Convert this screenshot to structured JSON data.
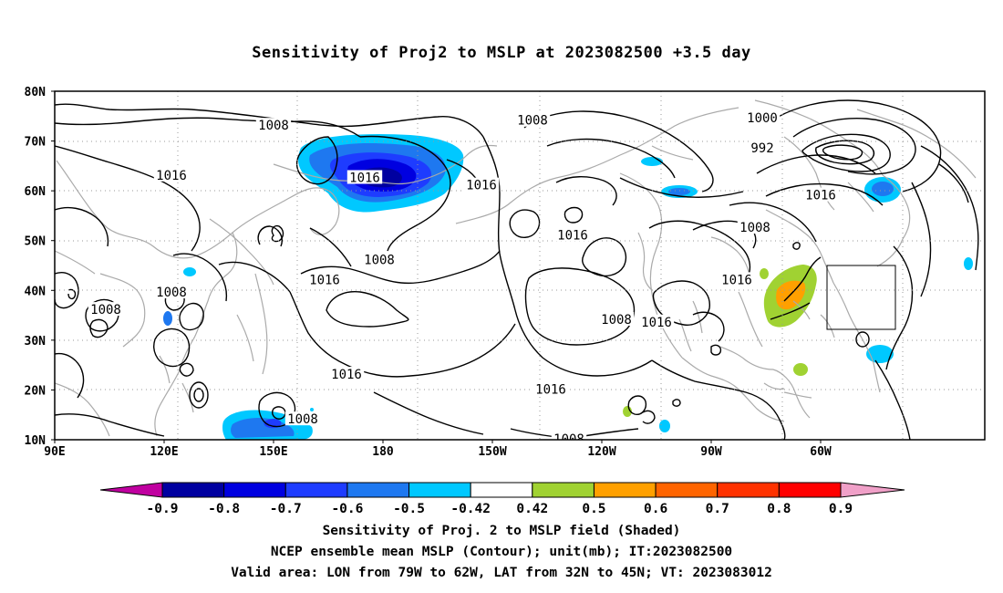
{
  "title": "Sensitivity of Proj2 to MSLP at 2023082500 +3.5 day",
  "map": {
    "lat_labels": [
      "80N",
      "70N",
      "60N",
      "50N",
      "40N",
      "30N",
      "20N",
      "10N"
    ],
    "lon_labels": [
      "90E",
      "120E",
      "150E",
      "180",
      "150W",
      "120W",
      "90W",
      "60W"
    ],
    "valid_area": {
      "lon_range": [
        "79W",
        "62W"
      ],
      "lat_range": [
        "32N",
        "45N"
      ]
    },
    "contour_labels": [
      {
        "text": "1008",
        "lon": 150,
        "lat": 73
      },
      {
        "text": "1016",
        "lon": 122,
        "lat": 63
      },
      {
        "text": "1016",
        "lon": 175,
        "lat": 62.5
      },
      {
        "text": "1008",
        "lon": 179,
        "lat": 46
      },
      {
        "text": "1016",
        "lon": 164,
        "lat": 42
      },
      {
        "text": "1008",
        "lon": 122,
        "lat": 39.5
      },
      {
        "text": "1008",
        "lon": 104,
        "lat": 36
      },
      {
        "text": "1016",
        "lon": 170,
        "lat": 23
      },
      {
        "text": "1008",
        "lon": 158,
        "lat": 14
      },
      {
        "text": "1008",
        "lon": -139,
        "lat": 74
      },
      {
        "text": "1016",
        "lon": -153,
        "lat": 61
      },
      {
        "text": "1016",
        "lon": -128,
        "lat": 51
      },
      {
        "text": "1016",
        "lon": -134,
        "lat": 20
      },
      {
        "text": "1008",
        "lon": -129,
        "lat": 10
      },
      {
        "text": "1008",
        "lon": -116,
        "lat": 34
      },
      {
        "text": "1016",
        "lon": -105,
        "lat": 33.5
      },
      {
        "text": "1016",
        "lon": -83,
        "lat": 42
      },
      {
        "text": "1000",
        "lon": -76,
        "lat": 74.5
      },
      {
        "text": "992",
        "lon": -76,
        "lat": 68.5
      },
      {
        "text": "1008",
        "lon": -78,
        "lat": 52.5
      },
      {
        "text": "1016",
        "lon": -60,
        "lat": 59
      }
    ]
  },
  "colorbar": {
    "tick_labels": [
      "-0.9",
      "-0.8",
      "-0.7",
      "-0.6",
      "-0.5",
      "-0.42",
      "0.42",
      "0.5",
      "0.6",
      "0.7",
      "0.8",
      "0.9"
    ],
    "colors": [
      "#c000a0",
      "#0000a0",
      "#0000e0",
      "#1e3cff",
      "#1e78f0",
      "#00c8ff",
      "#ffffff",
      "#a0d232",
      "#ffa000",
      "#ff6400",
      "#ff3200",
      "#ff0000",
      "#f0a0c8"
    ]
  },
  "captions": [
    "Sensitivity of Proj. 2 to MSLP field (Shaded)",
    "NCEP ensemble mean MSLP (Contour); unit(mb); IT:2023082500",
    "Valid area: LON from 79W to 62W, LAT from 32N to 45N; VT: 2023083012"
  ]
}
